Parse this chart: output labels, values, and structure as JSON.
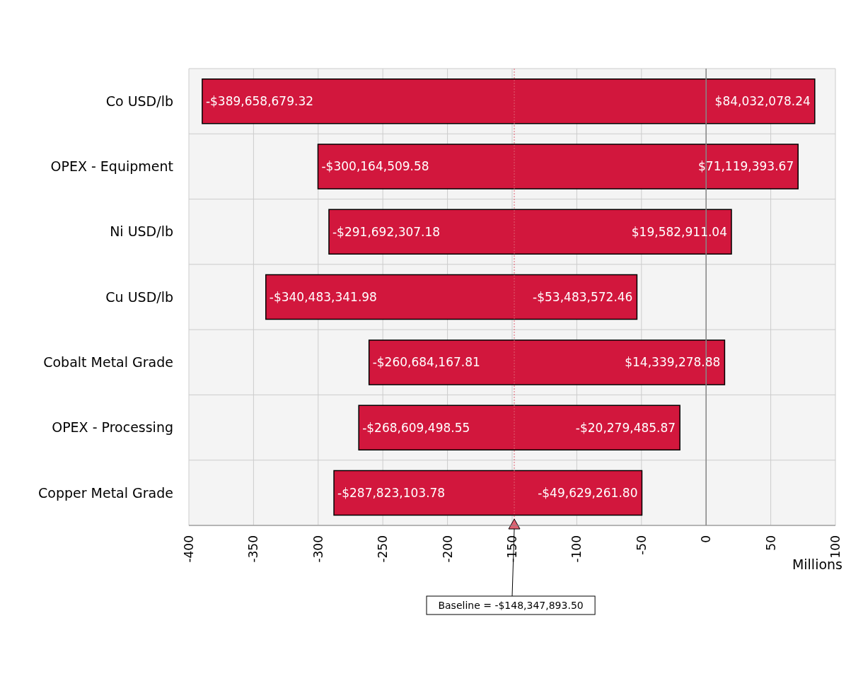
{
  "chart_data": {
    "type": "bar",
    "orientation": "horizontal",
    "xlabel": "Millions",
    "categories": [
      "Co USD/lb",
      "OPEX - Equipment",
      "Ni USD/lb",
      "Cu USD/lb",
      "Cobalt Metal Grade",
      "OPEX - Processing",
      "Copper Metal Grade"
    ],
    "base": [
      -389.66,
      -300.16,
      -291.69,
      -340.48,
      -260.68,
      -268.61,
      -287.82
    ],
    "values": [
      473.69,
      371.28,
      311.28,
      287.0,
      275.02,
      248.33,
      238.19
    ],
    "color": "#d2173d",
    "xlim": [
      -400,
      100
    ],
    "xticks": [
      -400,
      -350,
      -300,
      -250,
      -200,
      -150,
      -100,
      -50,
      0,
      50,
      100
    ],
    "grid": true,
    "ref_lines": [
      {
        "axis": "x",
        "value": -148.3478935,
        "label": "Baseline = -$148,347,893.50",
        "color": "#e06070",
        "line_style": "dotted"
      },
      {
        "axis": "x",
        "value": 0,
        "label": null,
        "color": "#888888",
        "line_style": "solid"
      }
    ],
    "annotations": [
      {
        "text": "-$389,658,679.32",
        "x": -389.65867932,
        "y": "Co USD/lb"
      },
      {
        "text": "$84,032,078.24",
        "x": 84.03207824,
        "y": "Co USD/lb"
      },
      {
        "text": "-$300,164,509.58",
        "x": -300.16450958,
        "y": "OPEX - Equipment"
      },
      {
        "text": "$71,119,393.67",
        "x": 71.11939367,
        "y": "OPEX - Equipment"
      },
      {
        "text": "-$291,692,307.18",
        "x": -291.69230718,
        "y": "Ni USD/lb"
      },
      {
        "text": "$19,582,911.04",
        "x": 19.58291104,
        "y": "Ni USD/lb"
      },
      {
        "text": "-$340,483,341.98",
        "x": -340.48334198,
        "y": "Cu USD/lb"
      },
      {
        "text": "-$53,483,572.46",
        "x": -53.48357246,
        "y": "Cu USD/lb"
      },
      {
        "text": "-$260,684,167.81",
        "x": -260.68416781,
        "y": "Cobalt Metal Grade"
      },
      {
        "text": "$14,339,278.88",
        "x": 14.33927888,
        "y": "Cobalt Metal Grade"
      },
      {
        "text": "-$268,609,498.55",
        "x": -268.60949855,
        "y": "OPEX - Processing"
      },
      {
        "text": "-$20,279,485.87",
        "x": -20.27948587,
        "y": "OPEX - Processing"
      },
      {
        "text": "-$287,823,103.78",
        "x": -287.82310378,
        "y": "Copper Metal Grade"
      },
      {
        "text": "-$49,629,261.80",
        "x": -49.6292618,
        "y": "Copper Metal Grade"
      }
    ]
  }
}
